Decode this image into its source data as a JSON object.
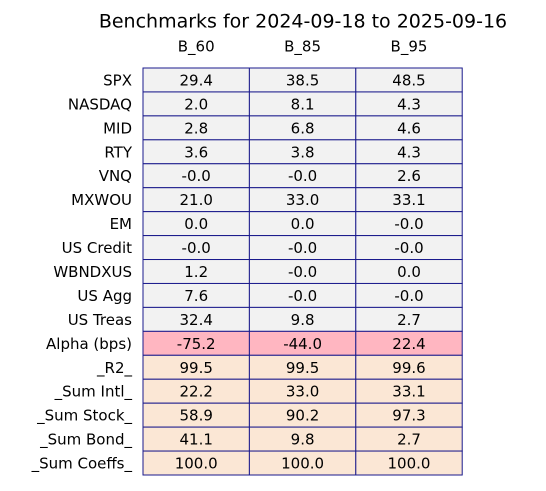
{
  "header": {
    "title": "Benchmarks for 2024-09-18 to 2025-09-16"
  },
  "table": {
    "columns": [
      "B_60",
      "B_85",
      "B_95"
    ],
    "border_color": "#1a1a8c",
    "rows": [
      {
        "label": "SPX",
        "color": "#f2f2f2",
        "cells": [
          "29.4",
          "38.5",
          "48.5"
        ]
      },
      {
        "label": "NASDAQ",
        "color": "#f2f2f2",
        "cells": [
          "2.0",
          "8.1",
          "4.3"
        ]
      },
      {
        "label": "MID",
        "color": "#f2f2f2",
        "cells": [
          "2.8",
          "6.8",
          "4.6"
        ]
      },
      {
        "label": "RTY",
        "color": "#f2f2f2",
        "cells": [
          "3.6",
          "3.8",
          "4.3"
        ]
      },
      {
        "label": "VNQ",
        "color": "#f2f2f2",
        "cells": [
          "-0.0",
          "-0.0",
          "2.6"
        ]
      },
      {
        "label": "MXWOU",
        "color": "#f2f2f2",
        "cells": [
          "21.0",
          "33.0",
          "33.1"
        ]
      },
      {
        "label": "EM",
        "color": "#f2f2f2",
        "cells": [
          "0.0",
          "0.0",
          "-0.0"
        ]
      },
      {
        "label": "US Credit",
        "color": "#f2f2f2",
        "cells": [
          "-0.0",
          "-0.0",
          "-0.0"
        ]
      },
      {
        "label": "WBNDXUS",
        "color": "#f2f2f2",
        "cells": [
          "1.2",
          "-0.0",
          "0.0"
        ]
      },
      {
        "label": "US Agg",
        "color": "#f2f2f2",
        "cells": [
          "7.6",
          "-0.0",
          "-0.0"
        ]
      },
      {
        "label": "US Treas",
        "color": "#f2f2f2",
        "cells": [
          "32.4",
          "9.8",
          "2.7"
        ]
      },
      {
        "label": "Alpha (bps)",
        "color": "#ffb6c1",
        "cells": [
          "-75.2",
          "-44.0",
          "22.4"
        ]
      },
      {
        "label": "_R2_",
        "color": "#fbe7d5",
        "cells": [
          "99.5",
          "99.5",
          "99.6"
        ]
      },
      {
        "label": "_Sum Intl_",
        "color": "#fbe7d5",
        "cells": [
          "22.2",
          "33.0",
          "33.1"
        ]
      },
      {
        "label": "_Sum Stock_",
        "color": "#fbe7d5",
        "cells": [
          "58.9",
          "90.2",
          "97.3"
        ]
      },
      {
        "label": "_Sum Bond_",
        "color": "#fbe7d5",
        "cells": [
          "41.1",
          "9.8",
          "2.7"
        ]
      },
      {
        "label": "_Sum Coeffs_",
        "color": "#fbe7d5",
        "cells": [
          "100.0",
          "100.0",
          "100.0"
        ]
      }
    ]
  }
}
